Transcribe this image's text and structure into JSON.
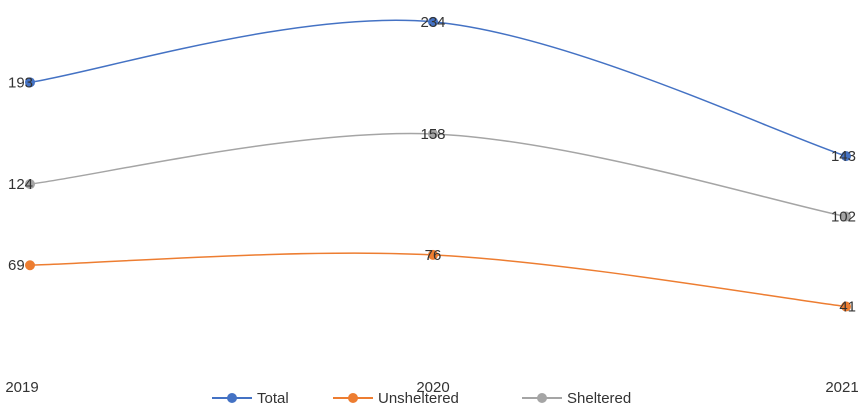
{
  "chart_data": {
    "type": "line",
    "title": "",
    "xlabel": "",
    "ylabel": "",
    "categories": [
      "2019",
      "2020",
      "2021"
    ],
    "ylim": [
      0,
      240
    ],
    "grid": false,
    "legend": "bottom",
    "smooth": true,
    "data_labels": true,
    "series": [
      {
        "name": "Total",
        "values": [
          193,
          234,
          143
        ],
        "color": "#4472C4"
      },
      {
        "name": "Unsheltered",
        "values": [
          69,
          76,
          41
        ],
        "color": "#ED7D31"
      },
      {
        "name": "Sheltered",
        "values": [
          124,
          158,
          102
        ],
        "color": "#A5A5A5"
      }
    ]
  }
}
